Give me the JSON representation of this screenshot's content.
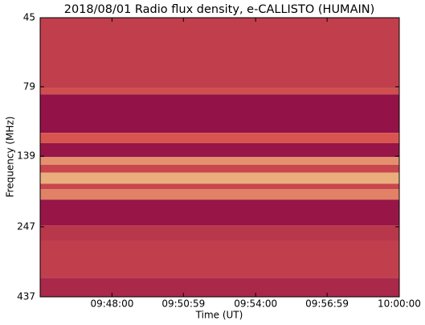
{
  "chart_data": {
    "type": "spectrogram",
    "title": "2018/08/01  Radio flux density, e-CALLISTO (HUMAIN)",
    "x_label": "Time (UT)",
    "y_label": "Frequency (MHz)",
    "xlim": [
      "09:45:00",
      "10:00:00"
    ],
    "xticks": [
      "09:48:00",
      "09:50:59",
      "09:54:00",
      "09:56:59",
      "10:00:00"
    ],
    "ylim": [
      45,
      437
    ],
    "yticks": [
      45,
      79,
      139,
      247,
      437
    ],
    "log_y": true,
    "y_inverted": true,
    "colormap": [
      "#8b0a46",
      "#d8554f",
      "#f6e89a"
    ],
    "bands": [
      {
        "low": 45,
        "high": 80,
        "level": 0.35
      },
      {
        "low": 80,
        "high": 84,
        "level": 0.45
      },
      {
        "low": 84,
        "high": 115,
        "level": 0.05
      },
      {
        "low": 115,
        "high": 125,
        "level": 0.5
      },
      {
        "low": 125,
        "high": 140,
        "level": 0.08
      },
      {
        "low": 140,
        "high": 149,
        "level": 0.7
      },
      {
        "low": 149,
        "high": 159,
        "level": 0.4
      },
      {
        "low": 159,
        "high": 174,
        "level": 0.8
      },
      {
        "low": 174,
        "high": 182,
        "level": 0.4
      },
      {
        "low": 182,
        "high": 198,
        "level": 0.65
      },
      {
        "low": 198,
        "high": 244,
        "level": 0.08
      },
      {
        "low": 244,
        "high": 278,
        "level": 0.3
      },
      {
        "low": 278,
        "high": 374,
        "level": 0.35
      },
      {
        "low": 374,
        "high": 437,
        "level": 0.2
      }
    ]
  }
}
